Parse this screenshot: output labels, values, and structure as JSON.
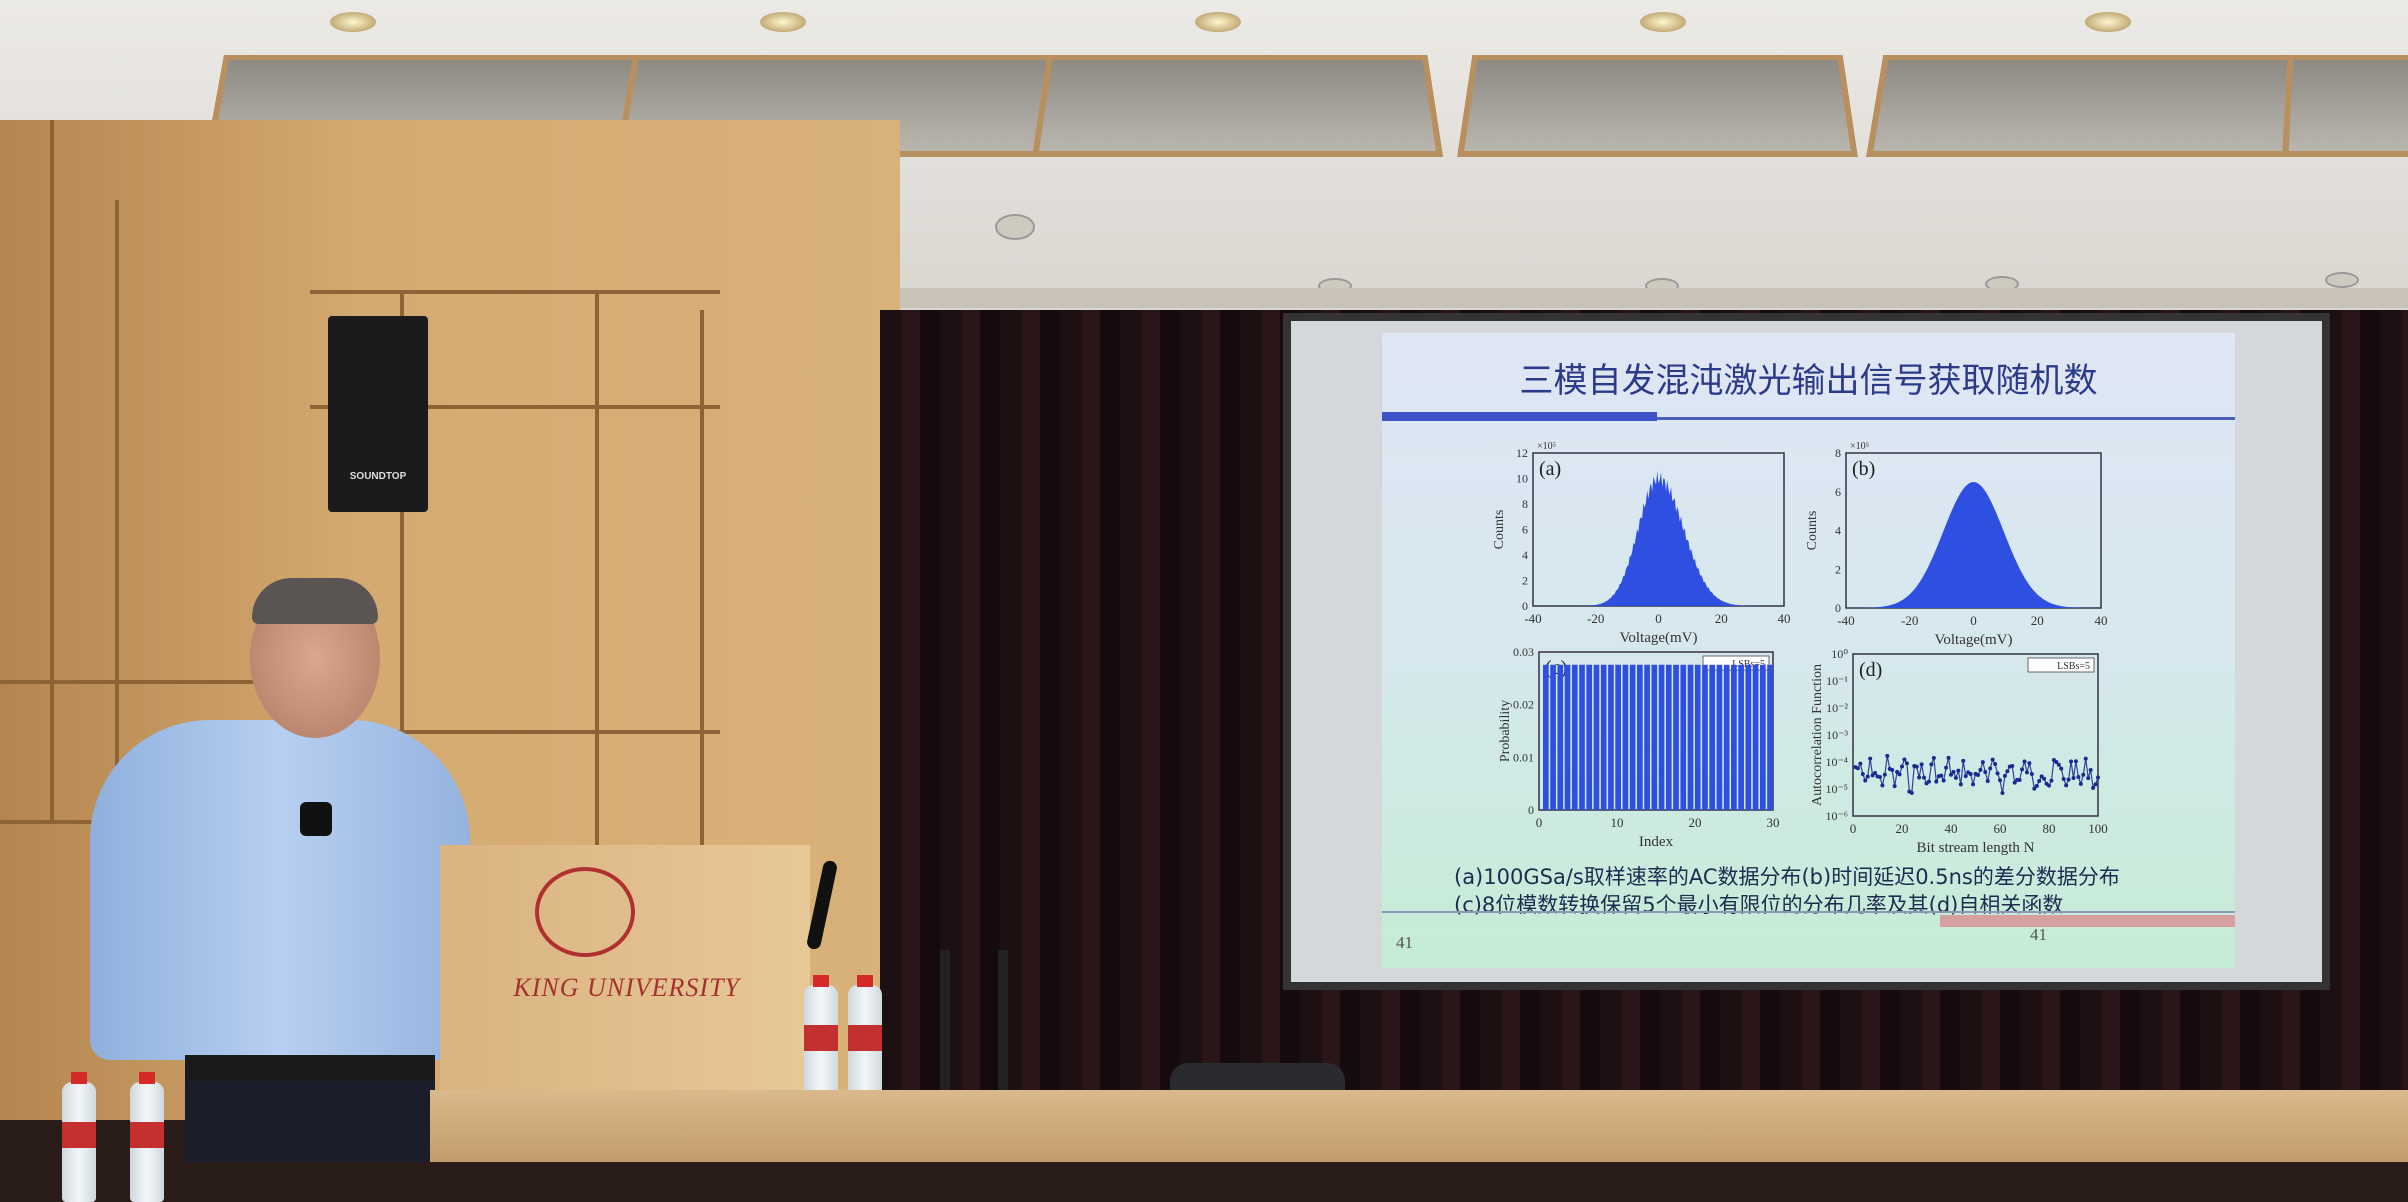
{
  "scene": {
    "speaker_brand": "SOUNDTOP",
    "podium_text": "KING UNIVERSITY",
    "colors": {
      "wall": "#d4aa70",
      "curtain": "#1c1013",
      "slide_accent": "#3f52c8",
      "bars": "#2f4fe0"
    }
  },
  "slide": {
    "title": "三模自发混沌激光输出信号获取随机数",
    "captions": [
      "(a)100GSa/s取样速率的AC数据分布(b)时间延迟0.5ns的差分数据分布",
      "(c)8位模数转换保留5个最小有限位的分布几率及其(d)自相关函数"
    ],
    "page_left": "41",
    "page_right": "41",
    "panels": {
      "a": {
        "label": "(a)",
        "ylabel": "Counts",
        "xlabel": "Voltage(mV)",
        "multiplier": "×10⁵",
        "xticks": [
          "-40",
          "-20",
          "0",
          "20",
          "40"
        ],
        "yticks": [
          "0",
          "2",
          "4",
          "6",
          "8",
          "10",
          "12"
        ]
      },
      "b": {
        "label": "(b)",
        "ylabel": "Counts",
        "xlabel": "Voltage(mV)",
        "multiplier": "×10⁵",
        "xticks": [
          "-40",
          "-20",
          "0",
          "20",
          "40"
        ],
        "yticks": [
          "0",
          "2",
          "4",
          "6",
          "8"
        ]
      },
      "c": {
        "label": "(c)",
        "ylabel": "Probability",
        "xlabel": "Index",
        "legend": "LSBs=5",
        "xticks": [
          "0",
          "10",
          "20",
          "30"
        ],
        "yticks": [
          "0",
          "0.01",
          "0.02",
          "0.03"
        ]
      },
      "d": {
        "label": "(d)",
        "ylabel": "Autocorrelation Function",
        "xlabel": "Bit stream length N",
        "legend": "LSBs=5",
        "xticks": [
          "0",
          "20",
          "40",
          "60",
          "80",
          "100"
        ],
        "yticks": [
          "10⁻⁶",
          "10⁻⁵",
          "10⁻⁴",
          "10⁻³",
          "10⁻²",
          "10⁻¹",
          "10⁰"
        ]
      }
    }
  }
}
